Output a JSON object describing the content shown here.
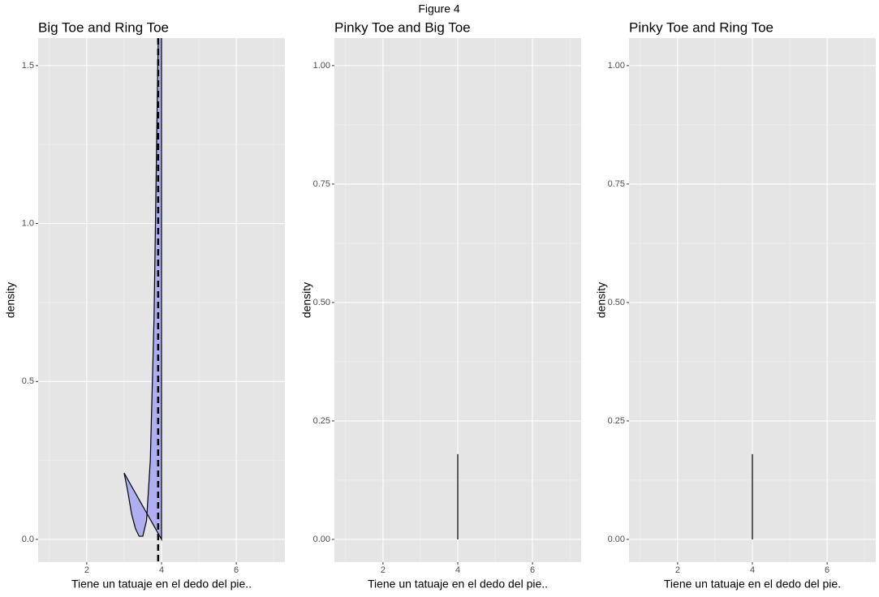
{
  "title": "Figure 4",
  "chart_data": [
    {
      "type": "density",
      "title": "Big Toe and Ring Toe",
      "x_label": "Tiene un tatuaje en el dedo del pie..",
      "y_label": "density",
      "x": [
        3.0,
        3.1,
        3.2,
        3.3,
        3.4,
        3.5,
        3.6,
        3.7,
        3.8,
        3.85,
        3.9,
        3.95,
        4.0,
        4.0
      ],
      "values": [
        0.21,
        0.15,
        0.08,
        0.035,
        0.01,
        0.01,
        0.06,
        0.25,
        0.7,
        1.1,
        1.5,
        1.8,
        2.0,
        0
      ],
      "color": "#aeaef0",
      "vline": 3.91,
      "grid": true,
      "xlim": [
        0.7,
        7.3
      ],
      "xticks": [
        2,
        4,
        6
      ],
      "ylim": [
        -0.072,
        1.587
      ],
      "yticks": [
        {
          "value": 0,
          "label": "0.0"
        },
        0.5,
        {
          "value": 1,
          "label": "1.0"
        },
        1.5
      ]
    },
    {
      "type": "density",
      "title": "Pinky Toe and Big Toe",
      "x_label": "Tiene un tatuaje en el dedo del pie..",
      "y_label": "density",
      "x": [
        4,
        4
      ],
      "values": [
        0,
        0.18
      ],
      "color": "#aeaef0",
      "grid": true,
      "xlim": [
        0.7,
        7.3
      ],
      "xticks": [
        2,
        4,
        6
      ],
      "ylim": [
        -0.048,
        1.058
      ],
      "yticks": [
        {
          "value": 0,
          "label": "0.00"
        },
        0.25,
        {
          "value": 0.5,
          "label": "0.50"
        },
        0.75,
        {
          "value": 1,
          "label": "1.00"
        }
      ]
    },
    {
      "type": "density",
      "title": "Pinky Toe and Ring Toe",
      "x_label": "Tiene un tatuaje en el dedo del pie.",
      "y_label": "density",
      "x": [
        4,
        4
      ],
      "values": [
        0,
        0.18
      ],
      "color": "#aeaef0",
      "grid": true,
      "xlim": [
        0.7,
        7.3
      ],
      "xticks": [
        2,
        4,
        6
      ],
      "ylim": [
        -0.048,
        1.058
      ],
      "yticks": [
        {
          "value": 0,
          "label": "0.00"
        },
        0.25,
        {
          "value": 0.5,
          "label": "0.50"
        },
        0.75,
        {
          "value": 1,
          "label": "1.00"
        }
      ]
    }
  ]
}
